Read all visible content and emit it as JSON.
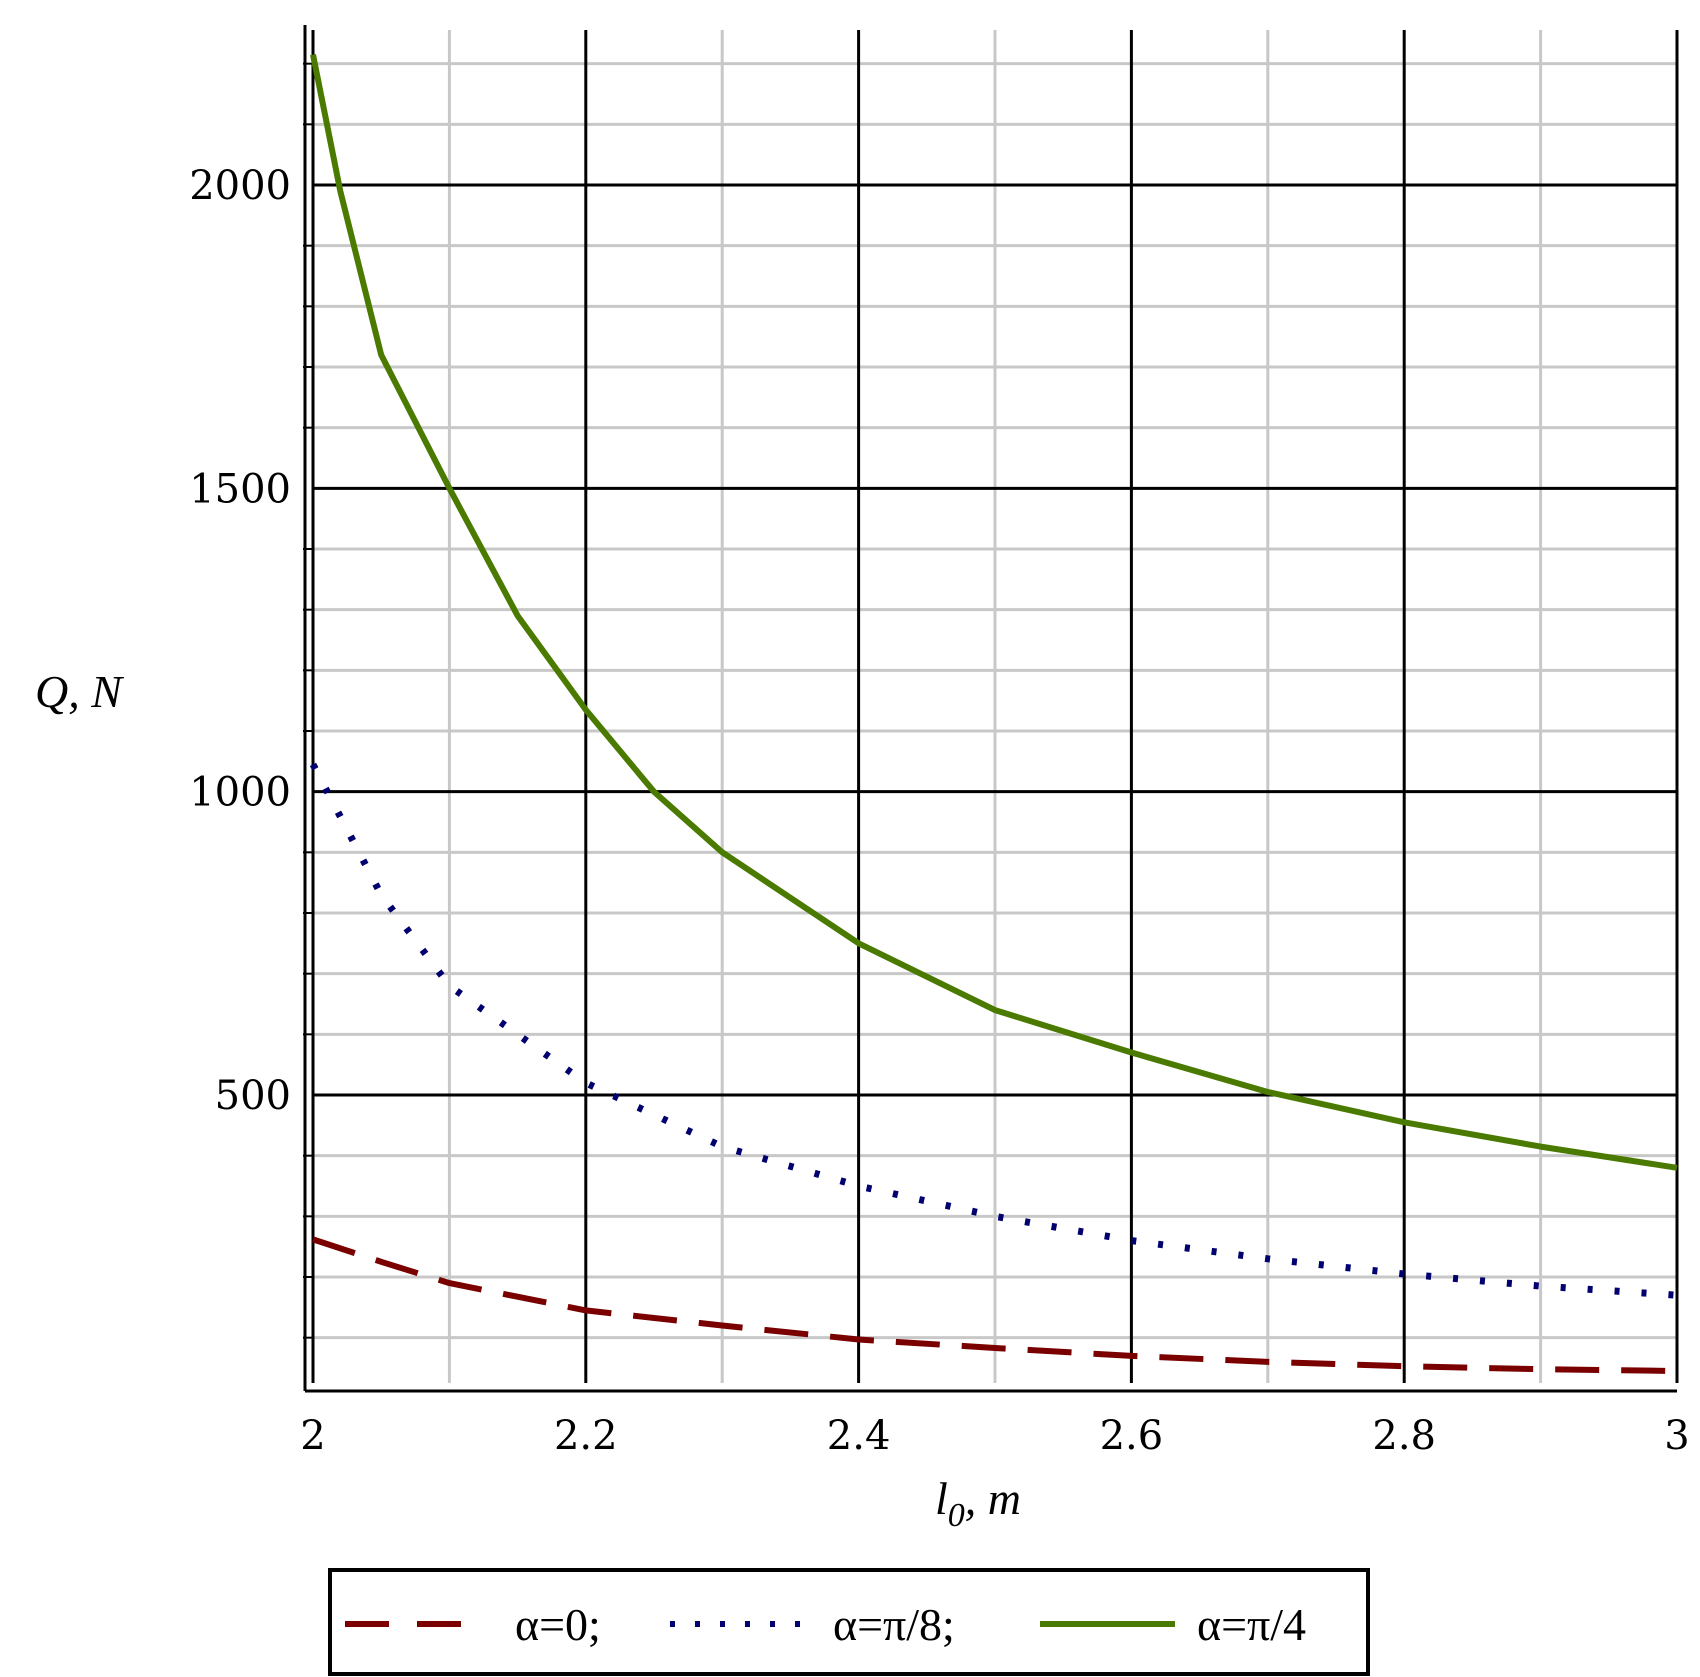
{
  "chart_data": {
    "type": "line",
    "title": "",
    "xlabel": "l",
    "xlabel_sub": "0",
    "xlabel_unit": ", m",
    "ylabel": "Q, N",
    "xlim": [
      2,
      3
    ],
    "ylim": [
      0,
      2225
    ],
    "grid": true,
    "xticks": [
      "2",
      "2.2",
      "2.4",
      "2.6",
      "2.8",
      "3"
    ],
    "xtick_values": [
      2,
      2.2,
      2.4,
      2.6,
      2.8,
      3
    ],
    "yticks": [
      "500",
      "1000",
      "1500",
      "2000"
    ],
    "ytick_values": [
      500,
      1000,
      1500,
      2000
    ],
    "legend_position": "bottom",
    "series": [
      {
        "name": "α=0;",
        "color": "#7a0000",
        "style": "dashed",
        "x": [
          2.0,
          2.05,
          2.1,
          2.2,
          2.3,
          2.4,
          2.5,
          2.6,
          2.7,
          2.8,
          2.9,
          3.0
        ],
        "values": [
          262,
          225,
          190,
          145,
          120,
          97,
          83,
          70,
          60,
          53,
          48,
          45
        ]
      },
      {
        "name": "α=π/8;",
        "color": "#00006e",
        "style": "dotted",
        "x": [
          2.0,
          2.05,
          2.1,
          2.2,
          2.3,
          2.4,
          2.5,
          2.6,
          2.7,
          2.8,
          2.9,
          3.0
        ],
        "values": [
          1045,
          830,
          680,
          520,
          415,
          350,
          300,
          260,
          230,
          205,
          185,
          170
        ]
      },
      {
        "name": "α=π/4",
        "color": "#4a7a00",
        "style": "solid",
        "x": [
          2.0,
          2.02,
          2.05,
          2.1,
          2.15,
          2.2,
          2.25,
          2.3,
          2.4,
          2.5,
          2.6,
          2.7,
          2.8,
          2.9,
          3.0
        ],
        "values": [
          2215,
          1990,
          1720,
          1500,
          1290,
          1135,
          1000,
          900,
          750,
          640,
          570,
          505,
          455,
          415,
          380
        ]
      }
    ]
  }
}
